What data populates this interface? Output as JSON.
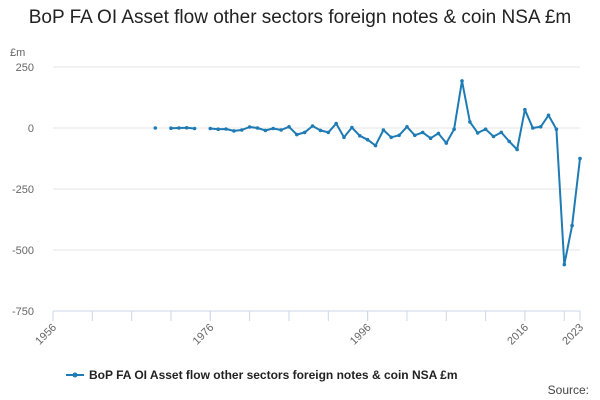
{
  "chart_data": {
    "type": "line",
    "title": "BoP FA OI Asset flow other sectors foreign notes & coin NSA £m",
    "ylabel": "£m",
    "xlabel": "",
    "ylim": [
      -750,
      250
    ],
    "xlim": [
      1956,
      2023
    ],
    "y_ticks": [
      250,
      0,
      -250,
      -500,
      -750
    ],
    "y_tick_labels": [
      "250",
      "0",
      "-250",
      "-500",
      "-750"
    ],
    "x_ticks": [
      1956,
      1976,
      1996,
      2016,
      2023
    ],
    "x_tick_labels": [
      "1956",
      "1976",
      "1996",
      "2016",
      "2023"
    ],
    "grid": "horizontal",
    "series": [
      {
        "name": "BoP FA OI Asset flow other sectors foreign notes & coin NSA £m",
        "color": "#1f7bb4",
        "segments": [
          [
            [
              1969,
              0
            ]
          ],
          [
            [
              1971,
              -1
            ],
            [
              1972,
              0
            ],
            [
              1973,
              1
            ],
            [
              1974,
              -2
            ]
          ],
          [
            [
              1976,
              -2
            ],
            [
              1977,
              -5
            ],
            [
              1978,
              -4
            ],
            [
              1979,
              -12
            ],
            [
              1980,
              -8
            ],
            [
              1981,
              4
            ],
            [
              1982,
              0
            ],
            [
              1983,
              -10
            ],
            [
              1984,
              -2
            ],
            [
              1985,
              -8
            ],
            [
              1986,
              5
            ],
            [
              1987,
              -27
            ],
            [
              1988,
              -18
            ],
            [
              1989,
              8
            ],
            [
              1990,
              -10
            ],
            [
              1991,
              -18
            ],
            [
              1992,
              18
            ],
            [
              1993,
              -38
            ],
            [
              1994,
              2
            ],
            [
              1995,
              -32
            ],
            [
              1996,
              -48
            ],
            [
              1997,
              -72
            ],
            [
              1998,
              -8
            ],
            [
              1999,
              -38
            ],
            [
              2000,
              -30
            ],
            [
              2001,
              5
            ],
            [
              2002,
              -30
            ],
            [
              2003,
              -18
            ],
            [
              2004,
              -42
            ],
            [
              2005,
              -22
            ],
            [
              2006,
              -62
            ],
            [
              2007,
              -5
            ],
            [
              2008,
              193
            ],
            [
              2009,
              25
            ],
            [
              2010,
              -20
            ],
            [
              2011,
              -5
            ],
            [
              2012,
              -35
            ],
            [
              2013,
              -18
            ],
            [
              2014,
              -55
            ],
            [
              2015,
              -88
            ],
            [
              2016,
              75
            ],
            [
              2017,
              0
            ],
            [
              2018,
              5
            ],
            [
              2019,
              52
            ],
            [
              2020,
              -5
            ],
            [
              2021,
              -560
            ],
            [
              2022,
              -400
            ],
            [
              2023,
              -125
            ]
          ]
        ]
      }
    ],
    "legend": {
      "position": "bottom",
      "label": "BoP FA OI Asset flow other sectors foreign notes & coin NSA £m"
    },
    "source_label": "Source:"
  }
}
